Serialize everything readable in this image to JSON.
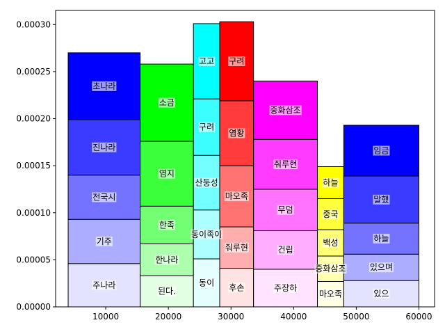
{
  "chart_data": {
    "type": "bar",
    "title": "",
    "xlabel": "",
    "ylabel": "",
    "xlim": [
      2000,
      62500
    ],
    "ylim": [
      0,
      0.000315
    ],
    "xticks": [
      10000,
      20000,
      30000,
      40000,
      50000,
      60000
    ],
    "xtick_labels": [
      "10000",
      "20000",
      "30000",
      "40000",
      "50000",
      "60000"
    ],
    "yticks": [
      0,
      5e-05,
      0.0001,
      0.00015,
      0.0002,
      0.00025,
      0.0003
    ],
    "ytick_labels": [
      "0.00000",
      "0.00005",
      "0.00010",
      "0.00015",
      "0.00020",
      "0.00025",
      "0.00030"
    ],
    "grid": false,
    "legend": "none",
    "stacks": [
      {
        "x0": 4000,
        "x1": 15500,
        "base_color": "#0000ff",
        "segments": [
          {
            "label": "주나라",
            "value": 4.6e-05
          },
          {
            "label": "기주",
            "value": 4.7e-05
          },
          {
            "label": "전국시",
            "value": 4.7e-05
          },
          {
            "label": "진나라",
            "value": 5.9e-05
          },
          {
            "label": "초나라",
            "value": 7.1e-05
          }
        ]
      },
      {
        "x0": 15500,
        "x1": 24000,
        "base_color": "#00ff00",
        "segments": [
          {
            "label": "된다.",
            "value": 3.3e-05
          },
          {
            "label": "한나라",
            "value": 3.4e-05
          },
          {
            "label": "한족",
            "value": 4e-05
          },
          {
            "label": "염지",
            "value": 6.9e-05
          },
          {
            "label": "소금",
            "value": 8.2e-05
          }
        ]
      },
      {
        "x0": 24000,
        "x1": 28200,
        "base_color": "#00ffff",
        "segments": [
          {
            "label": "동이",
            "value": 5.1e-05
          },
          {
            "label": "동이족이",
            "value": 5.2e-05
          },
          {
            "label": "산둥성",
            "value": 5.8e-05
          },
          {
            "label": "구려",
            "value": 6e-05
          },
          {
            "label": "고고",
            "value": 8e-05
          }
        ]
      },
      {
        "x0": 28200,
        "x1": 33600,
        "base_color": "#ff0000",
        "segments": [
          {
            "label": "후손",
            "value": 4.1e-05
          },
          {
            "label": "줘루현",
            "value": 4.4e-05
          },
          {
            "label": "마오족",
            "value": 6.5e-05
          },
          {
            "label": "염황",
            "value": 6.9e-05
          },
          {
            "label": "구려",
            "value": 8.4e-05
          }
        ]
      },
      {
        "x0": 33600,
        "x1": 43800,
        "base_color": "#ff00ff",
        "segments": [
          {
            "label": "주장하",
            "value": 4e-05
          },
          {
            "label": "건립",
            "value": 4.1e-05
          },
          {
            "label": "무덤",
            "value": 4.4e-05
          },
          {
            "label": "줘루현",
            "value": 5.3e-05
          },
          {
            "label": "중화삼조",
            "value": 6.2e-05
          }
        ]
      },
      {
        "x0": 43800,
        "x1": 48000,
        "base_color": "#ffff00",
        "segments": [
          {
            "label": "마오족",
            "value": 2.7e-05
          },
          {
            "label": "중화삼조",
            "value": 2.7e-05
          },
          {
            "label": "백성",
            "value": 2.8e-05
          },
          {
            "label": "중국",
            "value": 3.3e-05
          },
          {
            "label": "하늘",
            "value": 3.4e-05
          }
        ]
      },
      {
        "x0": 48000,
        "x1": 60000,
        "base_color": "#0000ff",
        "segments": [
          {
            "label": "있으",
            "value": 2.8e-05
          },
          {
            "label": "있으며",
            "value": 2.8e-05
          },
          {
            "label": "하늘",
            "value": 3.3e-05
          },
          {
            "label": "말했",
            "value": 5e-05
          },
          {
            "label": "임금",
            "value": 5.4e-05
          }
        ]
      }
    ]
  }
}
